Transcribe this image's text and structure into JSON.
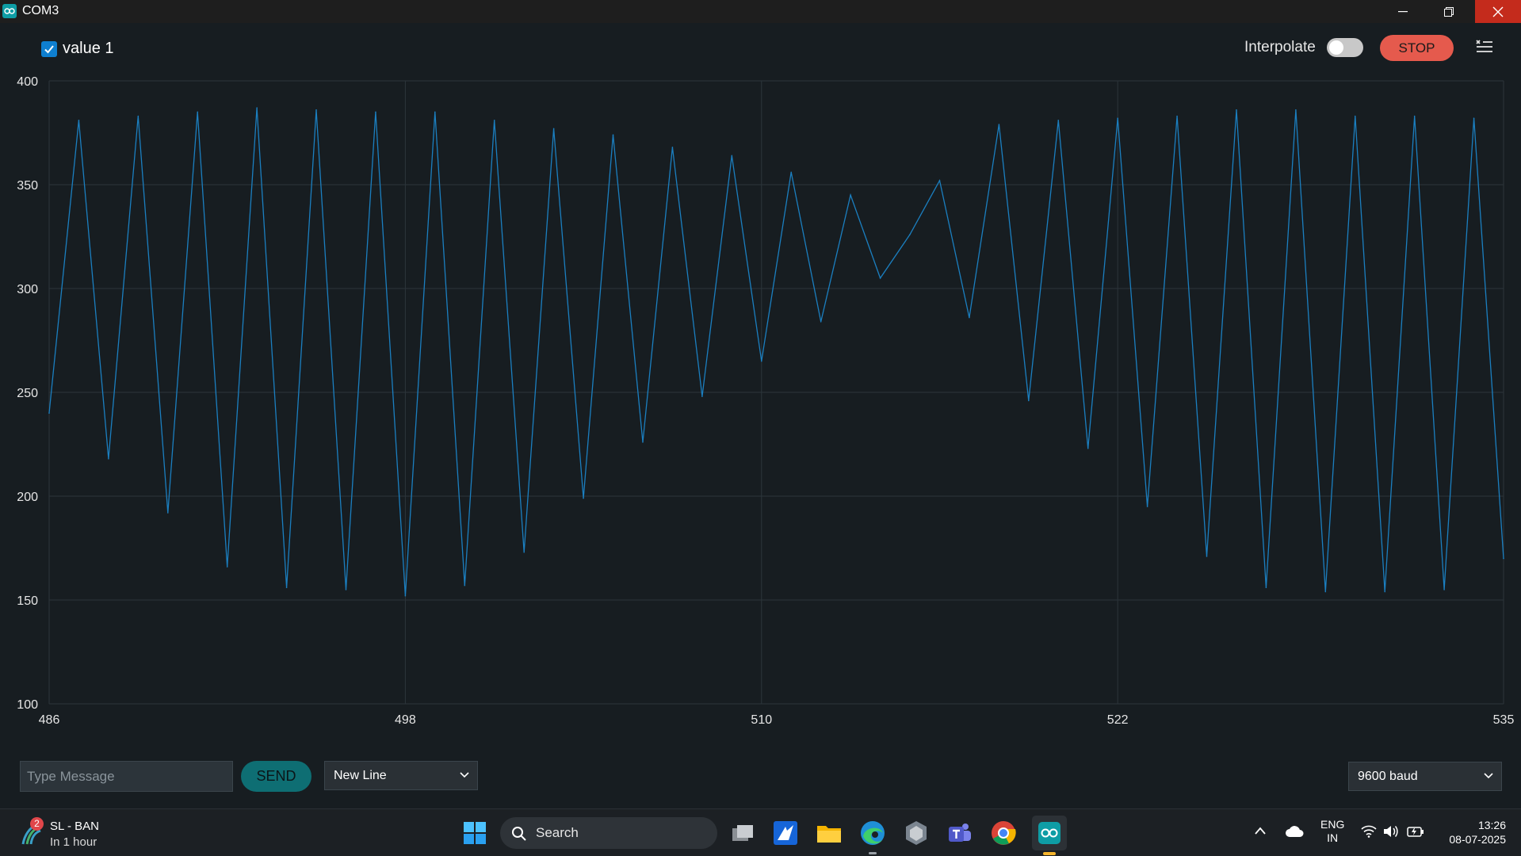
{
  "window": {
    "title": "COM3",
    "icon": "arduino-icon",
    "controls": [
      "minimize-icon",
      "restore-icon",
      "close-icon"
    ]
  },
  "header": {
    "series_label": "value 1",
    "series_checked": true,
    "interpolate_label": "Interpolate",
    "interpolate_on": false,
    "stop_label": "STOP",
    "menu_icon": "clear-menu-icon"
  },
  "chart_data": {
    "type": "line",
    "xlim": [
      486,
      535
    ],
    "ylim": [
      100,
      400
    ],
    "x_ticks": [
      "486",
      "498",
      "510",
      "522",
      "535"
    ],
    "y_ticks": [
      "400",
      "350",
      "300",
      "250",
      "200",
      "150",
      "100"
    ],
    "grid": true,
    "series": [
      {
        "name": "value 1",
        "color": "#1b7fc0",
        "x": [
          486,
          487,
          488,
          489,
          490,
          491,
          492,
          493,
          494,
          495,
          496,
          497,
          498,
          499,
          500,
          501,
          502,
          503,
          504,
          505,
          506,
          507,
          508,
          509,
          510,
          511,
          512,
          513,
          514,
          515,
          516,
          517,
          518,
          519,
          520,
          521,
          522,
          523,
          524,
          525,
          526,
          527,
          528,
          529,
          530,
          531,
          532,
          533,
          534,
          535
        ],
        "values": [
          240,
          381,
          218,
          383,
          192,
          385,
          166,
          387,
          156,
          386,
          155,
          385,
          152,
          385,
          157,
          381,
          173,
          377,
          199,
          374,
          226,
          368,
          248,
          364,
          265,
          356,
          284,
          345,
          305,
          326,
          352,
          286,
          379,
          246,
          381,
          223,
          382,
          195,
          383,
          171,
          386,
          156,
          386,
          154,
          383,
          154,
          383,
          155,
          382,
          170
        ]
      }
    ]
  },
  "footer": {
    "message_placeholder": "Type Message",
    "send_label": "SEND",
    "line_ending": "New Line",
    "baud_rate": "9600 baud"
  },
  "taskbar": {
    "weather": {
      "badge": "2",
      "title": "SL - BAN",
      "subtitle": "In 1 hour",
      "icon": "cricket-icon"
    },
    "search_label": "Search",
    "apps": [
      "start-icon",
      "task-view-icon",
      "app-icon",
      "file-explorer-icon",
      "edge-icon",
      "app-icon",
      "teams-icon",
      "chrome-icon",
      "arduino-icon"
    ],
    "tray": {
      "lang_line1": "ENG",
      "lang_line2": "IN",
      "time": "13:26",
      "date": "08-07-2025"
    }
  }
}
